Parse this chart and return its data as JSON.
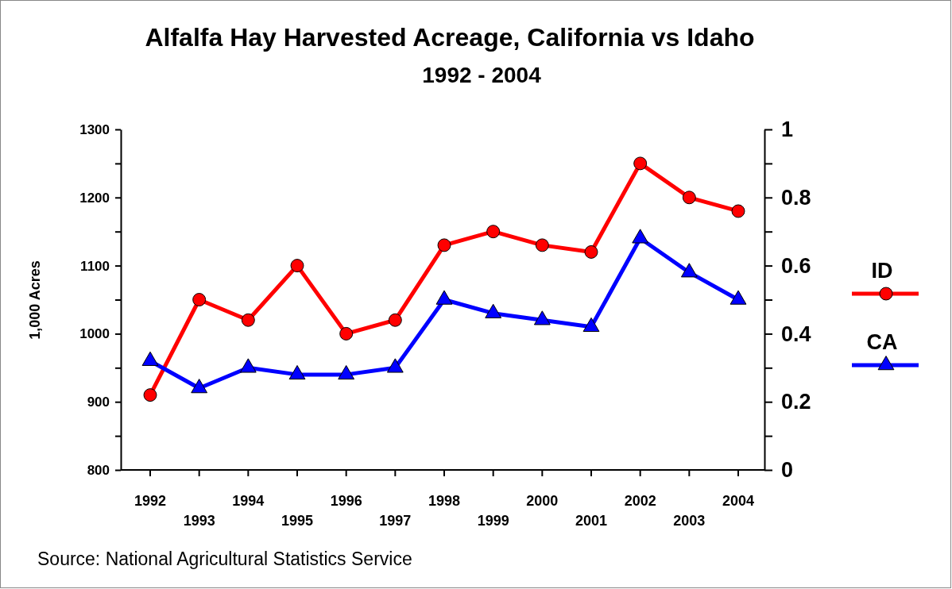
{
  "chart_data": {
    "type": "line",
    "title": "Alfalfa Hay Harvested Acreage, California vs Idaho",
    "subtitle": "1992 - 2004",
    "ylabel": "1,000 Acres",
    "categories": [
      "1992",
      "1993",
      "1994",
      "1995",
      "1996",
      "1997",
      "1998",
      "1999",
      "2000",
      "2001",
      "2002",
      "2003",
      "2004"
    ],
    "series": [
      {
        "name": "ID",
        "color": "#ff0000",
        "marker": "circle",
        "values": [
          910,
          1050,
          1020,
          1100,
          1000,
          1020,
          1130,
          1150,
          1130,
          1120,
          1250,
          1200,
          1180
        ]
      },
      {
        "name": "CA",
        "color": "#0000ff",
        "marker": "triangle",
        "values": [
          960,
          920,
          950,
          940,
          940,
          950,
          1050,
          1030,
          1020,
          1010,
          1140,
          1090,
          1050
        ]
      }
    ],
    "ylim": [
      800,
      1300
    ],
    "yticks": [
      800,
      {
        "value": 850,
        "label": null
      },
      900,
      {
        "value": 950,
        "label": null
      },
      1000,
      {
        "value": 1050,
        "label": null
      },
      1100,
      {
        "value": 1150,
        "label": null
      },
      1200,
      {
        "value": 1250,
        "label": null
      },
      1300
    ],
    "y2lim": [
      0,
      1
    ],
    "y2ticks": [
      0,
      {
        "value": 0.1,
        "label": null
      },
      0.2,
      {
        "value": 0.3,
        "label": null
      },
      0.4,
      {
        "value": 0.5,
        "label": null
      },
      0.6,
      {
        "value": 0.7,
        "label": null
      },
      0.8,
      {
        "value": 0.9,
        "label": null
      },
      1
    ],
    "legend": "right",
    "line_style": "solid",
    "annotations": [
      "Source:  National Agricultural Statistics Service"
    ]
  }
}
